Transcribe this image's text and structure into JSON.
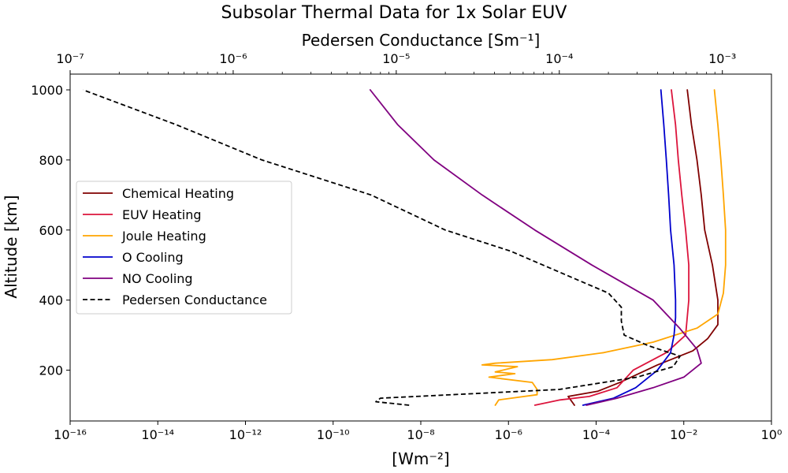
{
  "chart_data": {
    "type": "line",
    "title": "Subsolar Thermal Data for 1x Solar EUV",
    "top_axis": {
      "label": "Pedersen Conductance [Sm⁻¹]",
      "scale": "log",
      "lim": [
        1e-07,
        0.002
      ],
      "tick_labels": [
        "10⁻⁷",
        "10⁻⁶",
        "10⁻⁵",
        "10⁻⁴",
        "10⁻³"
      ],
      "tick_values": [
        1e-07,
        1e-06,
        1e-05,
        0.0001,
        0.001
      ]
    },
    "bottom_axis": {
      "label": "[Wm⁻²]",
      "scale": "log",
      "lim": [
        1e-16,
        1
      ],
      "tick_labels": [
        "10⁻¹⁶",
        "10⁻¹⁴",
        "10⁻¹²",
        "10⁻¹⁰",
        "10⁻⁸",
        "10⁻⁶",
        "10⁻⁴",
        "10⁻²",
        "10⁰"
      ],
      "tick_values": [
        1e-16,
        1e-14,
        1e-12,
        1e-10,
        1e-08,
        1e-06,
        0.0001,
        0.01,
        1
      ]
    },
    "y_axis": {
      "label": "Altitude [km]",
      "lim": [
        55,
        1045
      ],
      "tick_labels": [
        "200",
        "400",
        "600",
        "800",
        "1000"
      ],
      "tick_values": [
        200,
        400,
        600,
        800,
        1000
      ]
    },
    "legend_position": "center-left",
    "series": [
      {
        "name": "Chemical Heating",
        "color": "#800000",
        "style": "solid",
        "axis": "bottom",
        "points": [
          [
            3.2e-05,
            100
          ],
          [
            2.3e-05,
            125
          ],
          [
            0.00011,
            140
          ],
          [
            0.00035,
            165
          ],
          [
            0.0025,
            215
          ],
          [
            0.016,
            255
          ],
          [
            0.035,
            290
          ],
          [
            0.06,
            330
          ],
          [
            0.06,
            400
          ],
          [
            0.045,
            500
          ],
          [
            0.03,
            600
          ],
          [
            0.025,
            700
          ],
          [
            0.02,
            800
          ],
          [
            0.015,
            900
          ],
          [
            0.012,
            1000
          ]
        ]
      },
      {
        "name": "EUV Heating",
        "color": "#DC143C",
        "style": "solid",
        "axis": "bottom",
        "points": [
          [
            4e-06,
            100
          ],
          [
            1.5e-05,
            115
          ],
          [
            7e-05,
            125
          ],
          [
            0.0003,
            150
          ],
          [
            0.0007,
            200
          ],
          [
            0.004,
            250
          ],
          [
            0.011,
            300
          ],
          [
            0.013,
            400
          ],
          [
            0.013,
            500
          ],
          [
            0.011,
            600
          ],
          [
            0.009,
            700
          ],
          [
            0.0075,
            800
          ],
          [
            0.0065,
            900
          ],
          [
            0.0052,
            1000
          ]
        ]
      },
      {
        "name": "Joule Heating",
        "color": "#FFA500",
        "style": "solid",
        "axis": "bottom",
        "points": [
          [
            5e-07,
            100
          ],
          [
            6e-07,
            115
          ],
          [
            4.5e-06,
            130
          ],
          [
            4.5e-06,
            145
          ],
          [
            3.5e-06,
            165
          ],
          [
            3.6e-07,
            180
          ],
          [
            1.4e-06,
            190
          ],
          [
            5e-07,
            195
          ],
          [
            1.6e-06,
            210
          ],
          [
            2.5e-07,
            215
          ],
          [
            5e-07,
            220
          ],
          [
            1e-05,
            230
          ],
          [
            0.00015,
            250
          ],
          [
            0.002,
            280
          ],
          [
            0.02,
            320
          ],
          [
            0.06,
            360
          ],
          [
            0.08,
            420
          ],
          [
            0.09,
            500
          ],
          [
            0.09,
            600
          ],
          [
            0.08,
            700
          ],
          [
            0.07,
            800
          ],
          [
            0.06,
            900
          ],
          [
            0.05,
            1000
          ]
        ]
      },
      {
        "name": "O Cooling",
        "color": "#0000CD",
        "style": "solid",
        "axis": "bottom",
        "points": [
          [
            5e-05,
            100
          ],
          [
            0.00025,
            120
          ],
          [
            0.0008,
            150
          ],
          [
            0.0025,
            200
          ],
          [
            0.005,
            250
          ],
          [
            0.006,
            300
          ],
          [
            0.0065,
            350
          ],
          [
            0.0065,
            400
          ],
          [
            0.006,
            500
          ],
          [
            0.005,
            600
          ],
          [
            0.0045,
            700
          ],
          [
            0.004,
            800
          ],
          [
            0.0035,
            900
          ],
          [
            0.003,
            1000
          ]
        ]
      },
      {
        "name": "NO Cooling",
        "color": "#800080",
        "style": "solid",
        "axis": "bottom",
        "points": [
          [
            6e-05,
            100
          ],
          [
            0.0003,
            120
          ],
          [
            0.002,
            150
          ],
          [
            0.01,
            180
          ],
          [
            0.025,
            220
          ],
          [
            0.02,
            260
          ],
          [
            0.008,
            320
          ],
          [
            0.002,
            400
          ],
          [
            8e-05,
            500
          ],
          [
            4e-06,
            600
          ],
          [
            2.5e-07,
            700
          ],
          [
            2e-08,
            800
          ],
          [
            3e-09,
            900
          ],
          [
            7e-10,
            1000
          ]
        ]
      },
      {
        "name": "Pedersen Conductance",
        "color": "#000000",
        "style": "dashed",
        "axis": "top",
        "points": [
          [
            1.2e-05,
            100
          ],
          [
            7.5e-06,
            110
          ],
          [
            8e-06,
            120
          ],
          [
            0.0001,
            145
          ],
          [
            0.0003,
            180
          ],
          [
            0.0005,
            210
          ],
          [
            0.00055,
            240
          ],
          [
            0.00035,
            270
          ],
          [
            0.00025,
            300
          ],
          [
            0.00024,
            340
          ],
          [
            0.00024,
            380
          ],
          [
            0.0002,
            420
          ],
          [
            0.0001,
            480
          ],
          [
            5e-05,
            540
          ],
          [
            2e-05,
            600
          ],
          [
            7e-06,
            700
          ],
          [
            1.5e-06,
            800
          ],
          [
            4.5e-07,
            900
          ],
          [
            1.2e-07,
            1000
          ]
        ]
      }
    ]
  }
}
